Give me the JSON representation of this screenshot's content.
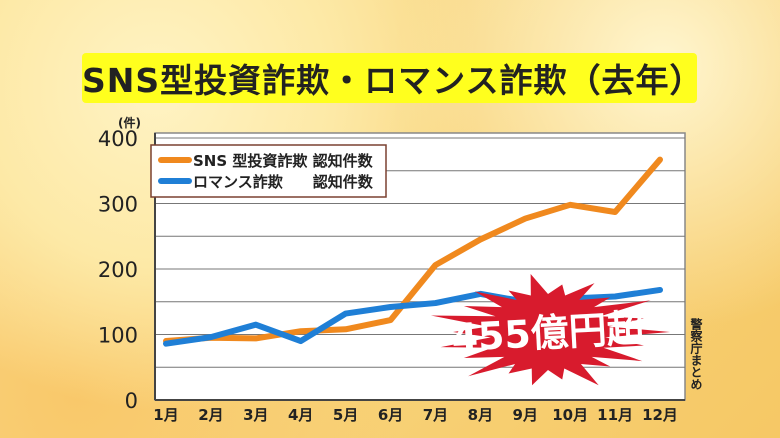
{
  "chart_data": {
    "type": "line",
    "title": "SNS型投資詐欺・ロマンス詐欺（去年）",
    "ylabel": "(件)",
    "xlabel": "",
    "categories": [
      "1月",
      "2月",
      "3月",
      "4月",
      "5月",
      "6月",
      "7月",
      "8月",
      "9月",
      "10月",
      "11月",
      "12月"
    ],
    "ylim": [
      0,
      400
    ],
    "yticks": [
      0,
      100,
      200,
      300,
      400
    ],
    "grid": true,
    "legend_position": "top-left",
    "series": [
      {
        "name": "SNS 型投資詐欺 認知件数",
        "color": "#f0891e",
        "values": [
          90,
          95,
          94,
          105,
          108,
          122,
          206,
          245,
          277,
          298,
          287,
          367
        ]
      },
      {
        "name": "ロマンス詐欺　　認知件数",
        "color": "#1f7fd6",
        "values": [
          86,
          96,
          115,
          90,
          132,
          142,
          148,
          162,
          150,
          155,
          158,
          168
        ]
      }
    ],
    "annotation": {
      "text": "455億円超",
      "color": "#d81b2d"
    },
    "source": "警察庁まとめ"
  }
}
